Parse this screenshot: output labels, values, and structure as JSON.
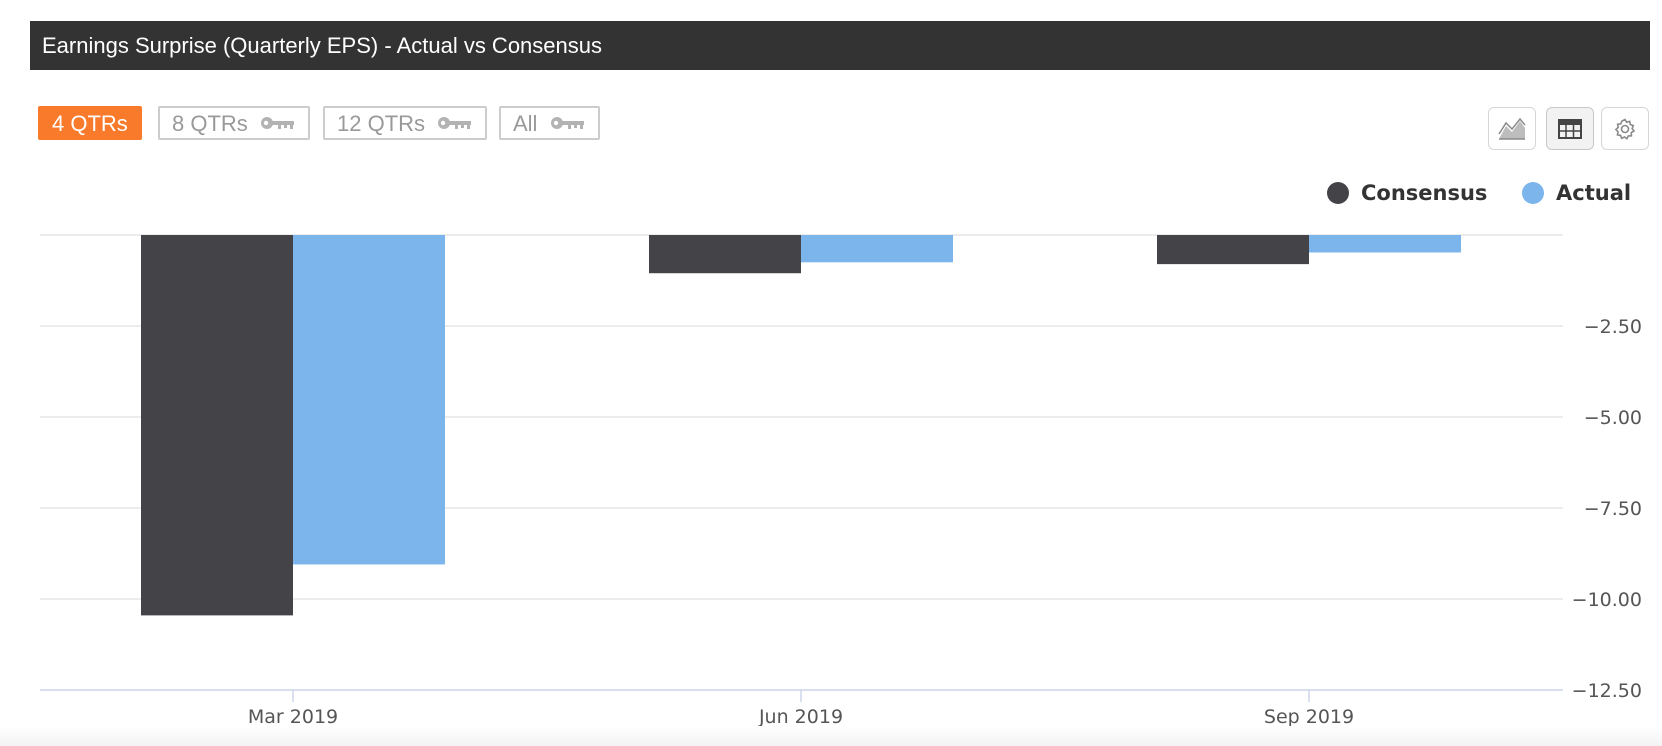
{
  "header": {
    "title": "Earnings Surprise (Quarterly EPS) - Actual vs Consensus"
  },
  "range_buttons": [
    {
      "label": "4 QTRs",
      "active": true,
      "locked": false
    },
    {
      "label": "8 QTRs",
      "active": false,
      "locked": true
    },
    {
      "label": "12 QTRs",
      "active": false,
      "locked": true
    },
    {
      "label": "All",
      "active": false,
      "locked": true
    }
  ],
  "toolbar": {
    "icons": [
      "area-chart-icon",
      "table-icon",
      "gear-icon"
    ],
    "selected": "table-icon"
  },
  "colors": {
    "consensus": "#434348",
    "actual": "#7cb5ec",
    "active_button": "#f97a2b",
    "title_bar": "#333333"
  },
  "chart_data": {
    "type": "bar",
    "categories": [
      "Mar 2019",
      "Jun 2019",
      "Sep 2019"
    ],
    "series": [
      {
        "name": "Consensus",
        "values": [
          -10.45,
          -1.05,
          -0.8
        ]
      },
      {
        "name": "Actual",
        "values": [
          -9.05,
          -0.75,
          -0.48
        ]
      }
    ],
    "ylim": [
      -12.5,
      0
    ],
    "yticks": [
      -2.5,
      -5,
      -7.5,
      -10,
      -12.5
    ],
    "ytick_labels": [
      "−2.50",
      "−5.00",
      "−7.50",
      "−10.00",
      "−12.50"
    ],
    "y_axis_position": "right",
    "legend_position": "top-right",
    "grid": true
  }
}
